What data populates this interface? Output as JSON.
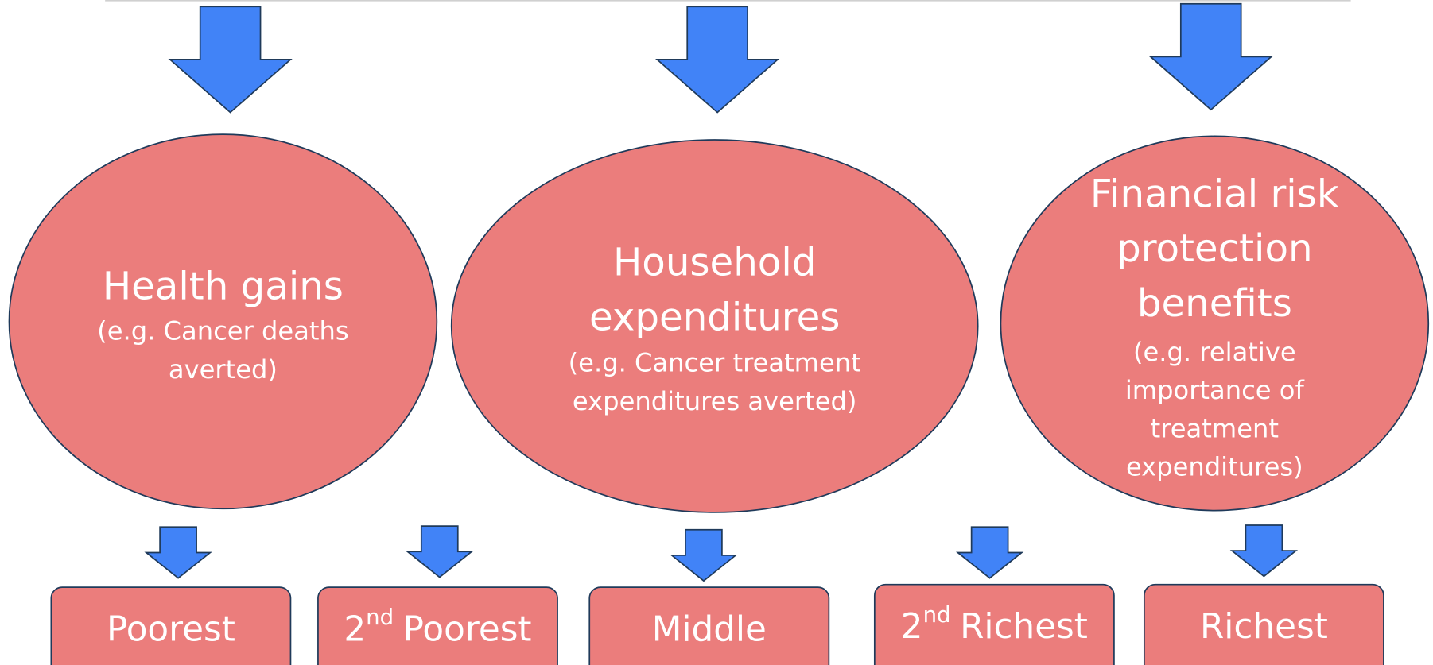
{
  "nodes": [
    {
      "title_lines": [
        "Health gains"
      ],
      "note_lines": [
        "(e.g. Cancer deaths",
        "averted)"
      ]
    },
    {
      "title_lines": [
        "Household",
        "expenditures"
      ],
      "note_lines": [
        "(e.g. Cancer treatment",
        "expenditures averted)"
      ]
    },
    {
      "title_lines": [
        "Financial risk",
        "protection",
        "benefits"
      ],
      "note_lines": [
        "(e.g. relative",
        "importance of",
        "treatment",
        "expenditures)"
      ]
    }
  ],
  "groups": [
    {
      "label": "Poorest"
    },
    {
      "ordinal": "2",
      "suffix": "nd",
      "label": "Poorest"
    },
    {
      "label": "Middle"
    },
    {
      "ordinal": "2",
      "suffix": "nd",
      "label": "Richest"
    },
    {
      "label": "Richest"
    }
  ]
}
